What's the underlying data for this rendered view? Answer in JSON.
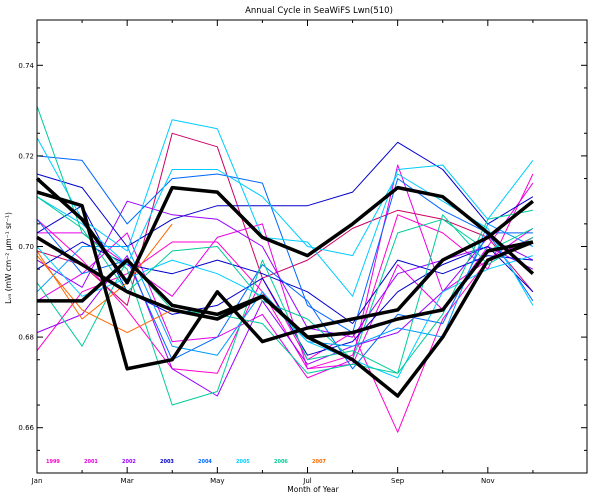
{
  "chart_data": {
    "type": "line",
    "title": "Annual Cycle in SeaWiFS Lwn(510)",
    "xlabel": "Month of Year",
    "ylabel": "Lᵥₙ (mW cm⁻² μm⁻¹ sr⁻¹)",
    "x": [
      1,
      2,
      3,
      4,
      5,
      6,
      7,
      8,
      9,
      10,
      11,
      12
    ],
    "xlim": [
      1,
      13.2
    ],
    "ylim": [
      0.65,
      0.75
    ],
    "x_ticks": [
      {
        "value": 1,
        "label": "Jan"
      },
      {
        "value": 3,
        "label": "Mar"
      },
      {
        "value": 5,
        "label": "May"
      },
      {
        "value": 7,
        "label": "Jul"
      },
      {
        "value": 9,
        "label": "Sep"
      },
      {
        "value": 11,
        "label": "Nov"
      }
    ],
    "y_ticks": [
      {
        "value": 0.66,
        "label": "0.66"
      },
      {
        "value": 0.68,
        "label": "0.68"
      },
      {
        "value": 0.7,
        "label": "0.70"
      },
      {
        "value": 0.72,
        "label": "0.72"
      },
      {
        "value": 0.74,
        "label": "0.74"
      }
    ],
    "grid": false,
    "legend_placement": "bottom-left",
    "legend": [
      {
        "label": "1999",
        "color": "#ff00cc"
      },
      {
        "label": "2001",
        "color": "#e600e6"
      },
      {
        "label": "2002",
        "color": "#9900ff"
      },
      {
        "label": "2003",
        "color": "#0000cc"
      },
      {
        "label": "2004",
        "color": "#0066ff"
      },
      {
        "label": "2005",
        "color": "#00ccff"
      },
      {
        "label": "2006",
        "color": "#00cc99"
      },
      {
        "label": "2007",
        "color": "#ff6600"
      }
    ],
    "series": [
      {
        "color": "#ff00cc",
        "width": 1,
        "values": [
          0.706,
          0.697,
          0.686,
          0.673,
          0.672,
          0.693,
          0.675,
          0.681,
          0.659,
          0.684,
          0.697,
          0.702
        ]
      },
      {
        "color": "#ff00cc",
        "width": 1,
        "values": [
          0.677,
          0.69,
          0.694,
          0.701,
          0.701,
          0.69,
          0.673,
          0.676,
          0.707,
          0.703,
          0.695,
          0.716
        ]
      },
      {
        "color": "#cc0066",
        "width": 1,
        "values": [
          0.699,
          0.696,
          0.687,
          0.725,
          0.722,
          0.693,
          0.697,
          0.704,
          0.708,
          0.706,
          0.702,
          0.69
        ]
      },
      {
        "color": "#e600e6",
        "width": 1,
        "values": [
          0.703,
          0.703,
          0.696,
          0.689,
          0.702,
          0.705,
          0.673,
          0.674,
          0.696,
          0.686,
          0.7,
          0.714
        ]
      },
      {
        "color": "#e600e6",
        "width": 1,
        "values": [
          0.688,
          0.694,
          0.703,
          0.679,
          0.68,
          0.685,
          0.671,
          0.675,
          0.718,
          0.69,
          0.697,
          0.704
        ]
      },
      {
        "color": "#9900ff",
        "width": 1,
        "values": [
          0.681,
          0.685,
          0.698,
          0.673,
          0.667,
          0.688,
          0.674,
          0.678,
          0.681,
          0.69,
          0.702,
          0.697
        ]
      },
      {
        "color": "#9900ff",
        "width": 1,
        "values": [
          0.697,
          0.691,
          0.71,
          0.707,
          0.706,
          0.7,
          0.682,
          0.68,
          0.694,
          0.697,
          0.7,
          0.695
        ]
      },
      {
        "color": "#0000cc",
        "width": 1,
        "values": [
          0.716,
          0.713,
          0.7,
          0.706,
          0.709,
          0.709,
          0.709,
          0.712,
          0.723,
          0.717,
          0.705,
          0.711
        ]
      },
      {
        "color": "#0000cc",
        "width": 1,
        "values": [
          0.695,
          0.701,
          0.696,
          0.694,
          0.697,
          0.694,
          0.69,
          0.683,
          0.697,
          0.694,
          0.698,
          0.697
        ]
      },
      {
        "color": "#0000cc",
        "width": 1,
        "values": [
          0.703,
          0.709,
          0.69,
          0.685,
          0.687,
          0.693,
          0.676,
          0.679,
          0.69,
          0.696,
          0.7,
          0.69
        ]
      },
      {
        "color": "#0066ff",
        "width": 1,
        "values": [
          0.72,
          0.719,
          0.705,
          0.715,
          0.716,
          0.714,
          0.687,
          0.681,
          0.715,
          0.708,
          0.703,
          0.703
        ]
      },
      {
        "color": "#0066ff",
        "width": 1,
        "values": [
          0.706,
          0.694,
          0.697,
          0.675,
          0.68,
          0.696,
          0.688,
          0.673,
          0.685,
          0.683,
          0.703,
          0.688
        ]
      },
      {
        "color": "#0099ff",
        "width": 1,
        "values": [
          0.69,
          0.7,
          0.7,
          0.678,
          0.676,
          0.69,
          0.679,
          0.678,
          0.682,
          0.68,
          0.705,
          0.7
        ]
      },
      {
        "color": "#00ccff",
        "width": 1,
        "values": [
          0.724,
          0.706,
          0.699,
          0.728,
          0.726,
          0.702,
          0.701,
          0.689,
          0.717,
          0.718,
          0.706,
          0.719
        ]
      },
      {
        "color": "#00ccff",
        "width": 1,
        "values": [
          0.711,
          0.705,
          0.696,
          0.717,
          0.717,
          0.711,
          0.7,
          0.698,
          0.716,
          0.71,
          0.704,
          0.687
        ]
      },
      {
        "color": "#00ccff",
        "width": 1,
        "values": [
          0.7,
          0.689,
          0.693,
          0.697,
          0.694,
          0.689,
          0.679,
          0.675,
          0.671,
          0.69,
          0.695,
          0.698
        ]
      },
      {
        "color": "#00cc99",
        "width": 1,
        "values": [
          0.731,
          0.703,
          0.695,
          0.665,
          0.668,
          0.697,
          0.675,
          0.677,
          0.672,
          0.685,
          0.706,
          0.708
        ]
      },
      {
        "color": "#00cc99",
        "width": 1,
        "values": [
          0.692,
          0.678,
          0.697,
          0.686,
          0.685,
          0.683,
          0.672,
          0.674,
          0.672,
          0.707,
          0.696,
          0.702
        ]
      },
      {
        "color": "#00cc99",
        "width": 1,
        "values": [
          0.711,
          0.704,
          0.69,
          0.699,
          0.7,
          0.688,
          0.684,
          0.675,
          0.703,
          0.706,
          0.699,
          0.704
        ]
      },
      {
        "color": "#ff6600",
        "width": 1,
        "values": [
          0.699,
          0.684,
          0.692,
          0.705,
          null,
          null,
          null,
          null,
          null,
          null,
          null,
          null
        ]
      },
      {
        "color": "#ff6600",
        "width": 1,
        "values": [
          0.698,
          0.686,
          0.681,
          0.686,
          null,
          null,
          null,
          null,
          null,
          null,
          null,
          null
        ]
      },
      {
        "color": "#000000",
        "width": 3.5,
        "values": [
          0.715,
          0.706,
          0.692,
          0.713,
          0.712,
          0.702,
          0.698,
          0.705,
          0.713,
          0.711,
          0.703,
          0.694
        ]
      },
      {
        "color": "#000000",
        "width": 3.5,
        "values": [
          0.712,
          0.709,
          0.673,
          0.675,
          0.69,
          0.679,
          0.682,
          0.684,
          0.686,
          0.697,
          0.702,
          0.71
        ]
      },
      {
        "color": "#000000",
        "width": 3.5,
        "values": [
          0.688,
          0.688,
          0.697,
          0.687,
          0.685,
          0.689,
          0.68,
          0.675,
          0.667,
          0.68,
          0.697,
          0.701
        ]
      },
      {
        "color": "#000000",
        "width": 3.5,
        "values": [
          0.702,
          0.696,
          0.69,
          0.686,
          0.684,
          0.689,
          0.68,
          0.681,
          0.684,
          0.686,
          0.699,
          0.701
        ]
      }
    ]
  }
}
